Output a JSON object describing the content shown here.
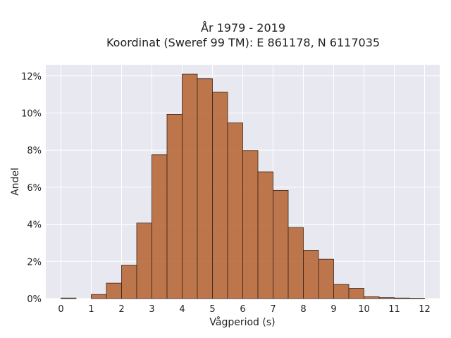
{
  "chart_data": {
    "type": "bar",
    "title": "År 1979 - 2019",
    "subtitle": "Koordinat (Sweref 99 TM): E 861178, N 6117035",
    "xlabel": "Vågperiod (s)",
    "ylabel": "Andel",
    "bin_width": 0.5,
    "x_bins": [
      0,
      0.5,
      1,
      1.5,
      2,
      2.5,
      3,
      3.5,
      4,
      4.5,
      5,
      5.5,
      6,
      6.5,
      7,
      7.5,
      8,
      8.5,
      9,
      9.5,
      10,
      10.5,
      11,
      11.5
    ],
    "values": [
      0.03,
      0.0,
      0.22,
      0.83,
      1.8,
      4.07,
      7.75,
      9.93,
      12.1,
      11.85,
      11.12,
      9.47,
      7.98,
      6.83,
      5.83,
      3.83,
      2.6,
      2.12,
      0.77,
      0.55,
      0.1,
      0.05,
      0.03,
      0.02
    ],
    "xlim": [
      -0.5,
      12.5
    ],
    "ylim": [
      0,
      12.6
    ],
    "x_ticks": [
      "0",
      "1",
      "2",
      "3",
      "4",
      "5",
      "6",
      "7",
      "8",
      "9",
      "10",
      "11",
      "12"
    ],
    "y_ticks": [
      "0%",
      "2%",
      "4%",
      "6%",
      "8%",
      "10%",
      "12%"
    ],
    "grid": true,
    "bar_color": "#b5622f",
    "background_color": "#e8e8f0"
  }
}
